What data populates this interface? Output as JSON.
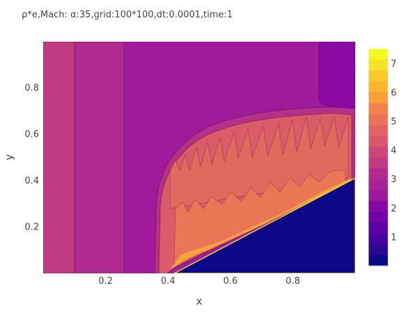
{
  "chart_data": {
    "type": "contour",
    "title": "ρ*e,Mach: α:35,grid:100*100,dt:0.0001,time:1",
    "xlabel": "x",
    "ylabel": "y",
    "xlim": [
      0,
      1
    ],
    "ylim": [
      0,
      1
    ],
    "x_ticks": [
      "0.2",
      "0.4",
      "0.6",
      "0.8"
    ],
    "x_tick_values": [
      0.2,
      0.4,
      0.6,
      0.8
    ],
    "y_ticks": [
      "0.2",
      "0.4",
      "0.6",
      "0.8"
    ],
    "y_tick_values": [
      0.2,
      0.4,
      0.6,
      0.8
    ],
    "colorbar": {
      "range": [
        0,
        7.5
      ],
      "level_step": 0.5,
      "ticks": [
        "1",
        "2",
        "3",
        "4",
        "5",
        "6",
        "7"
      ],
      "tick_values": [
        1,
        2,
        3,
        4,
        5,
        6,
        7
      ],
      "colors": [
        "#0d0887",
        "#2b0a91",
        "#46039f",
        "#5c01a6",
        "#7201a8",
        "#8707a6",
        "#9c179e",
        "#a82296",
        "#b12a90",
        "#c13b82",
        "#cc4778",
        "#d8576b",
        "#e16462",
        "#ea7457",
        "#f2844b",
        "#fb9f3a",
        "#fdb42f",
        "#f9c92a",
        "#f3e329",
        "#f0f921"
      ]
    },
    "regions": [
      {
        "name": "far-left band",
        "x_range": [
          0,
          0.1
        ],
        "level": 3.75
      },
      {
        "name": "second band",
        "x_range": [
          0.1,
          0.26
        ],
        "level": 3.25
      },
      {
        "name": "upstream field",
        "x_range": [
          0.26,
          1.0
        ],
        "level": 2.85
      },
      {
        "name": "upper-right pocket",
        "x_range": [
          0.88,
          1.0
        ],
        "y_range": [
          0.72,
          1.0
        ],
        "level": 2.3
      },
      {
        "name": "shock layer",
        "level": 4.4
      },
      {
        "name": "high-energy streaks",
        "level": 5.1
      },
      {
        "name": "near-wall jet",
        "level": 5.6
      },
      {
        "name": "wedge body",
        "y_at_x": [
          [
            0.42,
            0.0
          ],
          [
            1.0,
            0.41
          ]
        ],
        "level": 0.2
      }
    ]
  }
}
